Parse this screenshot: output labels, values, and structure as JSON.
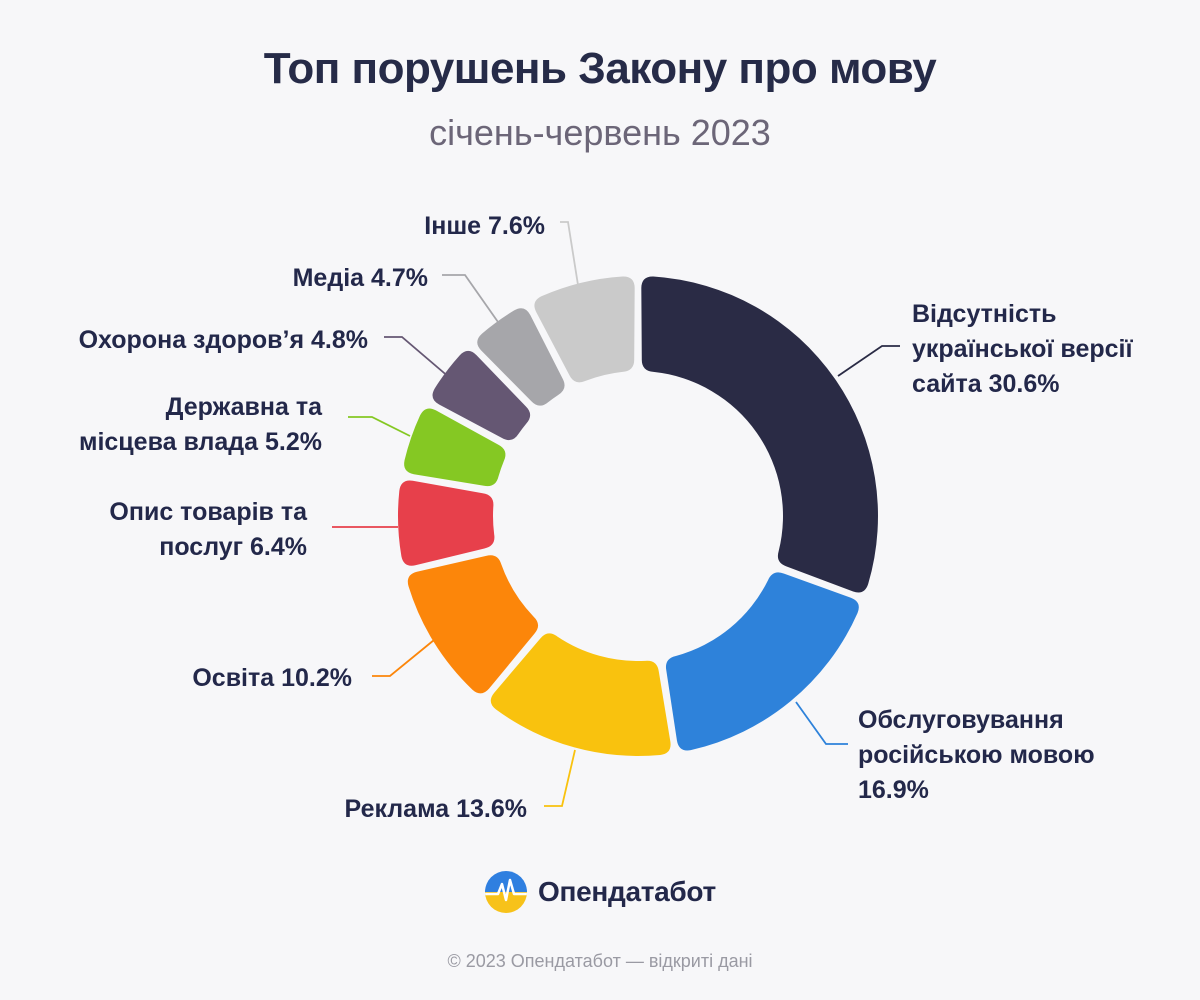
{
  "title": "Топ порушень Закону про мову",
  "subtitle": "січень-червень 2023",
  "brand": {
    "name": "Опендатабот",
    "icon": "opendatabot-logo-icon",
    "colors": {
      "top": "#2f7fe0",
      "bottom": "#f7c21a"
    }
  },
  "footer": "© 2023 Опендатабот — відкриті дані",
  "chart_data": {
    "type": "pie",
    "donut": true,
    "unit": "%",
    "title": "Топ порушень Закону про мову",
    "subtitle": "січень-червень 2023",
    "slices": [
      {
        "label_lines": [
          "Відсутність",
          "української версії",
          "сайта 30.6%"
        ],
        "value": 30.6,
        "color": "#2a2b45"
      },
      {
        "label_lines": [
          "Обслуговування",
          "російською мовою",
          "16.9%"
        ],
        "value": 16.9,
        "color": "#2e82da"
      },
      {
        "label_lines": [
          "Реклама 13.6%"
        ],
        "value": 13.6,
        "color": "#f9c20e"
      },
      {
        "label_lines": [
          "Освіта 10.2%"
        ],
        "value": 10.2,
        "color": "#fc860a"
      },
      {
        "label_lines": [
          "Опис товарів та",
          "послуг 6.4%"
        ],
        "value": 6.4,
        "color": "#e7404b"
      },
      {
        "label_lines": [
          "Державна та",
          "місцева влада 5.2%"
        ],
        "value": 5.2,
        "color": "#85c823"
      },
      {
        "label_lines": [
          "Охорона здоров’я 4.8%"
        ],
        "value": 4.8,
        "color": "#655773"
      },
      {
        "label_lines": [
          "Медіа 4.7%"
        ],
        "value": 4.7,
        "color": "#a6a6aa"
      },
      {
        "label_lines": [
          "Інше 7.6%"
        ],
        "value": 7.6,
        "color": "#cacaca"
      }
    ]
  }
}
